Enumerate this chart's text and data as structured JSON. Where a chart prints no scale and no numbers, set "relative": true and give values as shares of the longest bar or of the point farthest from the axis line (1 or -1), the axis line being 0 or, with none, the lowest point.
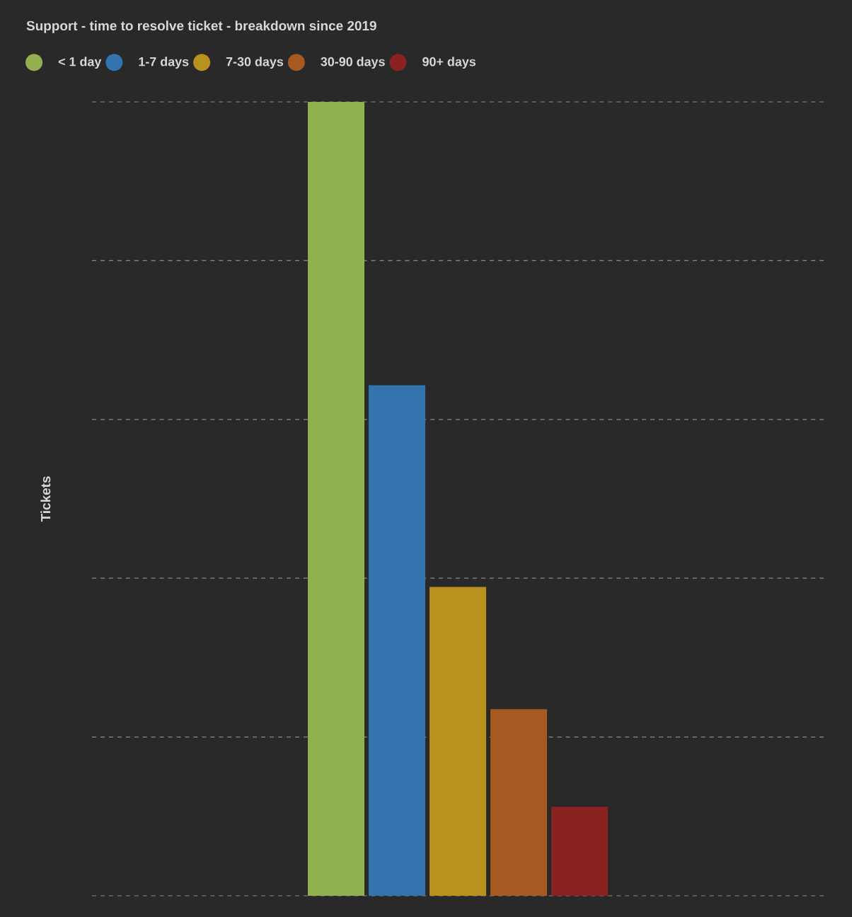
{
  "chart_data": {
    "type": "bar",
    "title": "Support - time to resolve ticket - breakdown since 2019",
    "ylabel": "Tickets",
    "relative": true,
    "grid": "y",
    "legend": "top left",
    "categories": [
      null
    ],
    "series": [
      {
        "name": "< 1 day",
        "color": "#91b151",
        "values": [
          1
        ]
      },
      {
        "name": "1-7 days",
        "color": "#3374ae",
        "values": [
          0.643
        ]
      },
      {
        "name": "7-30 days",
        "color": "#b8911f",
        "values": [
          0.389
        ]
      },
      {
        "name": "30-90 days",
        "color": "#a65a22",
        "values": [
          0.235
        ]
      },
      {
        "name": "90+ days",
        "color": "#8b2222",
        "values": [
          0.112
        ]
      }
    ]
  }
}
